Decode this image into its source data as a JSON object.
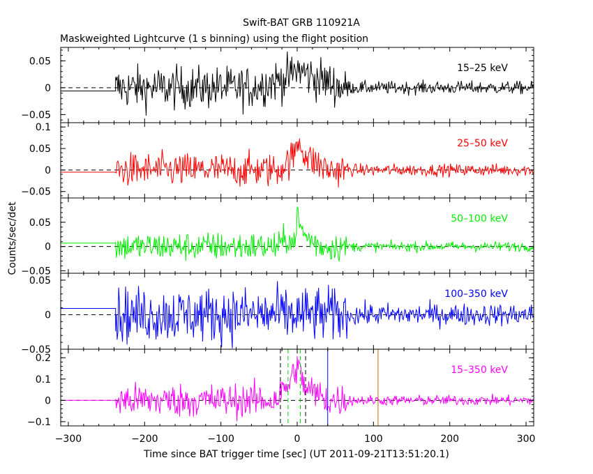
{
  "header": {
    "title": "Swift-BAT GRB 110921A",
    "subtitle": "Maskweighted Lightcurve (1 s binning) using the flight position"
  },
  "axes": {
    "xlabel": "Time since BAT trigger time [sec] (UT 2011-09-21T13:51:20.1)",
    "ylabel": "Counts/sec/det"
  },
  "chart_data": {
    "type": "line",
    "x_range": [
      -310,
      310
    ],
    "x_ticks": [
      -300,
      -200,
      -100,
      0,
      100,
      200,
      300
    ],
    "data_start": -238,
    "panels": [
      {
        "band": "15–25 keV",
        "color": "#000000",
        "ylim": [
          -0.065,
          0.075
        ],
        "y_ticks": [
          -0.05,
          0,
          0.05
        ],
        "y_tick_labels": [
          "−0.05",
          "0",
          "0.05"
        ],
        "pre_level": -0.006,
        "profile": [
          [
            -238,
            0.0
          ],
          [
            -60,
            0.0
          ],
          [
            -10,
            0.02
          ],
          [
            0,
            0.035
          ],
          [
            20,
            0.02
          ],
          [
            60,
            0.0
          ],
          [
            310,
            0.0
          ]
        ],
        "noise": [
          [
            -238,
            0.02
          ],
          [
            60,
            0.02
          ],
          [
            70,
            0.006
          ],
          [
            310,
            0.006
          ]
        ]
      },
      {
        "band": "25–50 keV",
        "color": "#ff0000",
        "ylim": [
          -0.065,
          0.11
        ],
        "y_ticks": [
          -0.05,
          0,
          0.05,
          0.1
        ],
        "y_tick_labels": [
          "−0.05",
          "0",
          "0.05",
          "0.1"
        ],
        "pre_level": -0.005,
        "profile": [
          [
            -238,
            0.0
          ],
          [
            -25,
            0.0
          ],
          [
            -5,
            0.03
          ],
          [
            2,
            0.07
          ],
          [
            12,
            0.03
          ],
          [
            40,
            0.0
          ],
          [
            310,
            0.0
          ]
        ],
        "noise": [
          [
            -238,
            0.02
          ],
          [
            60,
            0.02
          ],
          [
            70,
            0.007
          ],
          [
            310,
            0.007
          ]
        ]
      },
      {
        "band": "50–100 keV",
        "color": "#00ee00",
        "ylim": [
          -0.055,
          0.1
        ],
        "y_ticks": [
          -0.05,
          0,
          0.05
        ],
        "y_tick_labels": [
          "−0.05",
          "0",
          "0.05"
        ],
        "pre_level": 0.007,
        "profile": [
          [
            -238,
            0.0
          ],
          [
            -25,
            0.0
          ],
          [
            -10,
            0.02
          ],
          [
            -5,
            0.0
          ],
          [
            0,
            0.06
          ],
          [
            8,
            0.025
          ],
          [
            30,
            0.0
          ],
          [
            310,
            0.0
          ]
        ],
        "noise": [
          [
            -238,
            0.015
          ],
          [
            60,
            0.015
          ],
          [
            70,
            0.005
          ],
          [
            310,
            0.005
          ]
        ]
      },
      {
        "band": "100–350 keV",
        "color": "#0000ff",
        "ylim": [
          -0.05,
          0.06
        ],
        "y_ticks": [
          -0.05,
          0,
          0.05
        ],
        "y_tick_labels": [
          "−0.05",
          "0",
          "0.05"
        ],
        "pre_level": 0.009,
        "profile": [
          [
            -238,
            0.0
          ],
          [
            310,
            0.0
          ]
        ],
        "noise": [
          [
            -238,
            0.02
          ],
          [
            60,
            0.02
          ],
          [
            70,
            0.008
          ],
          [
            310,
            0.008
          ]
        ]
      },
      {
        "band": "15–350 keV",
        "color": "#ff00ff",
        "ylim": [
          -0.12,
          0.24
        ],
        "y_ticks": [
          -0.1,
          0,
          0.1,
          0.2
        ],
        "y_tick_labels": [
          "−0.1",
          "0",
          "0.1",
          "0.2"
        ],
        "pre_level": 0.0,
        "profile": [
          [
            -238,
            0.0
          ],
          [
            -30,
            0.0
          ],
          [
            -10,
            0.08
          ],
          [
            0,
            0.17
          ],
          [
            10,
            0.06
          ],
          [
            40,
            0.0
          ],
          [
            310,
            0.0
          ]
        ],
        "noise": [
          [
            -238,
            0.04
          ],
          [
            60,
            0.04
          ],
          [
            70,
            0.012
          ],
          [
            310,
            0.012
          ]
        ],
        "markers": [
          {
            "x": -22,
            "color": "#000000",
            "style": "dashed"
          },
          {
            "x": 11,
            "color": "#000000",
            "style": "dashed"
          },
          {
            "x": -12,
            "color": "#00cc00",
            "style": "dashed"
          },
          {
            "x": 4,
            "color": "#00cc00",
            "style": "dashed"
          },
          {
            "x": 40,
            "color": "#0000ff",
            "style": "solid"
          },
          {
            "x": 106,
            "color": "#c07000",
            "style": "solid"
          }
        ]
      }
    ]
  }
}
